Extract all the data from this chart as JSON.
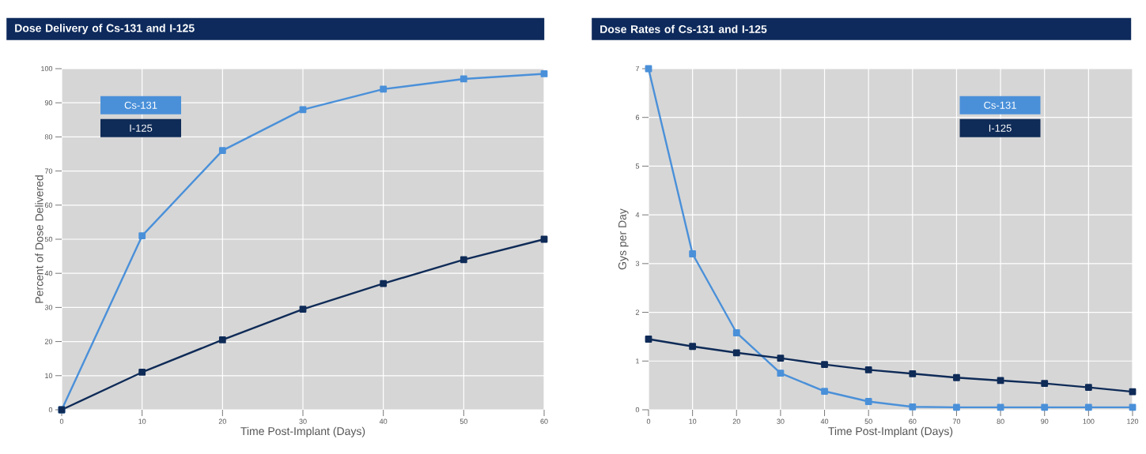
{
  "chart_data": [
    {
      "type": "line",
      "title": "Dose Delivery of Cs-131 and I-125",
      "xlabel": "Time Post-Implant (Days)",
      "ylabel": "Percent of Dose Delivered",
      "x": [
        0,
        10,
        20,
        30,
        40,
        50,
        60
      ],
      "xlim": [
        0,
        60
      ],
      "xticks": [
        0,
        10,
        20,
        30,
        40,
        50,
        60
      ],
      "ylim": [
        0,
        100
      ],
      "yticks": [
        0,
        10,
        20,
        30,
        40,
        50,
        60,
        70,
        80,
        90,
        100
      ],
      "series": [
        {
          "name": "Cs-131",
          "color": "#4a90d9",
          "values": [
            0,
            51,
            76,
            88,
            94,
            97,
            98.5
          ]
        },
        {
          "name": "I-125",
          "color": "#0f2b57",
          "values": [
            0,
            11,
            20.5,
            29.5,
            37,
            44,
            50
          ]
        }
      ],
      "grid": true,
      "legend": "top left",
      "marker": "square",
      "line_style": "solid"
    },
    {
      "type": "line",
      "title": "Dose Rates of Cs-131 and I-125",
      "xlabel": "Time Post-Implant (Days)",
      "ylabel": "Gys per Day",
      "categories": [
        "0",
        "10",
        "20",
        "30",
        "40",
        "50",
        "60",
        "70",
        "80",
        "90",
        "100",
        "120"
      ],
      "ylim": [
        0,
        7
      ],
      "yticks": [
        0,
        1,
        2,
        3,
        4,
        5,
        6,
        7
      ],
      "series": [
        {
          "name": "Cs-131",
          "color": "#4a90d9",
          "values": [
            7,
            3.2,
            1.58,
            0.75,
            0.38,
            0.17,
            0.06,
            0.05,
            0.05,
            0.05,
            0.05,
            0.05
          ]
        },
        {
          "name": "I-125",
          "color": "#0f2b57",
          "values": [
            1.45,
            1.3,
            1.17,
            1.06,
            0.93,
            0.82,
            0.74,
            0.66,
            0.6,
            0.54,
            0.46,
            0.37
          ]
        }
      ],
      "grid": true,
      "legend": "top right",
      "marker": "square",
      "line_style": "solid"
    }
  ]
}
